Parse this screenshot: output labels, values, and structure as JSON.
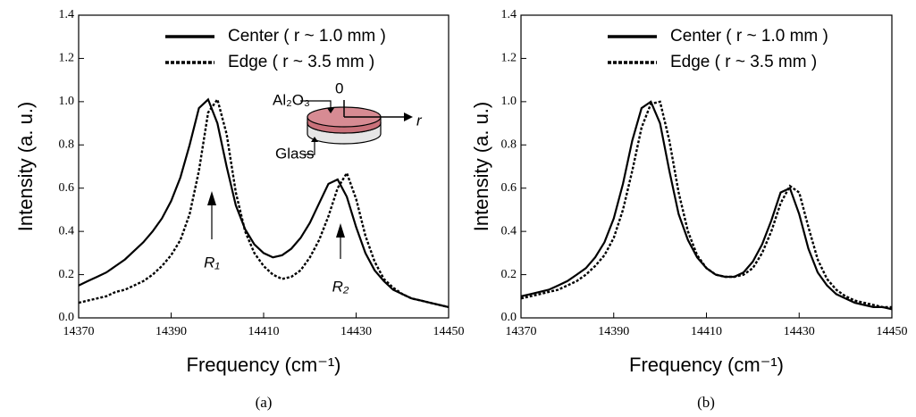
{
  "chart_data": [
    {
      "type": "line",
      "caption": "(a)",
      "xlabel": "Frequency (cm⁻¹)",
      "ylabel": "Intensity (a. u.)",
      "x": [
        14370,
        14372,
        14374,
        14376,
        14378,
        14380,
        14382,
        14384,
        14386,
        14388,
        14390,
        14392,
        14394,
        14396,
        14398,
        14400,
        14402,
        14404,
        14406,
        14408,
        14410,
        14412,
        14414,
        14416,
        14418,
        14420,
        14422,
        14424,
        14426,
        14428,
        14430,
        14432,
        14434,
        14436,
        14438,
        14440,
        14442,
        14444,
        14446,
        14448,
        14450
      ],
      "series": [
        {
          "name": "Center ( r ~ 1.0 mm )",
          "color": "#000000",
          "line_style": "solid",
          "values": [
            0.15,
            0.17,
            0.19,
            0.21,
            0.24,
            0.27,
            0.31,
            0.35,
            0.4,
            0.46,
            0.54,
            0.65,
            0.8,
            0.97,
            1.01,
            0.9,
            0.7,
            0.52,
            0.41,
            0.34,
            0.3,
            0.28,
            0.29,
            0.32,
            0.37,
            0.44,
            0.53,
            0.62,
            0.64,
            0.56,
            0.42,
            0.3,
            0.22,
            0.17,
            0.13,
            0.11,
            0.09,
            0.08,
            0.07,
            0.06,
            0.05
          ]
        },
        {
          "name": "Edge ( r ~ 3.5 mm )",
          "color": "#000000",
          "line_style": "dotted",
          "values": [
            0.07,
            0.08,
            0.09,
            0.1,
            0.12,
            0.13,
            0.15,
            0.17,
            0.2,
            0.24,
            0.29,
            0.36,
            0.48,
            0.68,
            0.95,
            1.01,
            0.85,
            0.58,
            0.4,
            0.3,
            0.24,
            0.2,
            0.18,
            0.19,
            0.22,
            0.28,
            0.36,
            0.47,
            0.6,
            0.67,
            0.55,
            0.38,
            0.26,
            0.18,
            0.14,
            0.11,
            0.09,
            0.08,
            0.07,
            0.06,
            0.05
          ]
        }
      ],
      "annotations": [
        "R₁",
        "R₂",
        "Al₂O₃",
        "0",
        "r",
        "Glass"
      ],
      "xlim": [
        14370,
        14450
      ],
      "xticks": [
        14370,
        14390,
        14410,
        14430,
        14450
      ],
      "ylim": [
        0,
        1.4
      ],
      "yticks": [
        {
          "value": 0,
          "label": "0.0"
        },
        0.2,
        0.4,
        0.6,
        0.8,
        {
          "value": 1,
          "label": "1.0"
        },
        1.2,
        1.4
      ]
    },
    {
      "type": "line",
      "caption": "(b)",
      "xlabel": "Frequency (cm⁻¹)",
      "ylabel": "Intensity (a. u.)",
      "x": [
        14370,
        14372,
        14374,
        14376,
        14378,
        14380,
        14382,
        14384,
        14386,
        14388,
        14390,
        14392,
        14394,
        14396,
        14398,
        14400,
        14402,
        14404,
        14406,
        14408,
        14410,
        14412,
        14414,
        14416,
        14418,
        14420,
        14422,
        14424,
        14426,
        14428,
        14430,
        14432,
        14434,
        14436,
        14438,
        14440,
        14442,
        14444,
        14446,
        14448,
        14450
      ],
      "series": [
        {
          "name": "Center ( r ~ 1.0 mm )",
          "color": "#000000",
          "line_style": "solid",
          "values": [
            0.1,
            0.11,
            0.12,
            0.13,
            0.15,
            0.17,
            0.2,
            0.23,
            0.28,
            0.35,
            0.46,
            0.62,
            0.82,
            0.97,
            1.0,
            0.9,
            0.68,
            0.48,
            0.36,
            0.28,
            0.23,
            0.2,
            0.19,
            0.19,
            0.21,
            0.26,
            0.34,
            0.45,
            0.58,
            0.6,
            0.48,
            0.32,
            0.21,
            0.15,
            0.11,
            0.09,
            0.07,
            0.06,
            0.05,
            0.05,
            0.04
          ]
        },
        {
          "name": "Edge ( r ~ 3.5 mm )",
          "color": "#000000",
          "line_style": "dotted",
          "values": [
            0.09,
            0.1,
            0.11,
            0.12,
            0.13,
            0.15,
            0.17,
            0.2,
            0.24,
            0.29,
            0.37,
            0.5,
            0.68,
            0.88,
            0.99,
            1.0,
            0.82,
            0.58,
            0.4,
            0.29,
            0.23,
            0.2,
            0.19,
            0.19,
            0.2,
            0.23,
            0.3,
            0.4,
            0.53,
            0.61,
            0.58,
            0.42,
            0.27,
            0.18,
            0.13,
            0.1,
            0.08,
            0.07,
            0.06,
            0.05,
            0.05
          ]
        }
      ],
      "xlim": [
        14370,
        14450
      ],
      "xticks": [
        14370,
        14390,
        14410,
        14430,
        14450
      ],
      "ylim": [
        0,
        1.4
      ],
      "yticks": [
        {
          "value": 0,
          "label": "0.0"
        },
        0.2,
        0.4,
        0.6,
        0.8,
        {
          "value": 1,
          "label": "1.0"
        },
        1.2,
        1.4
      ]
    }
  ]
}
